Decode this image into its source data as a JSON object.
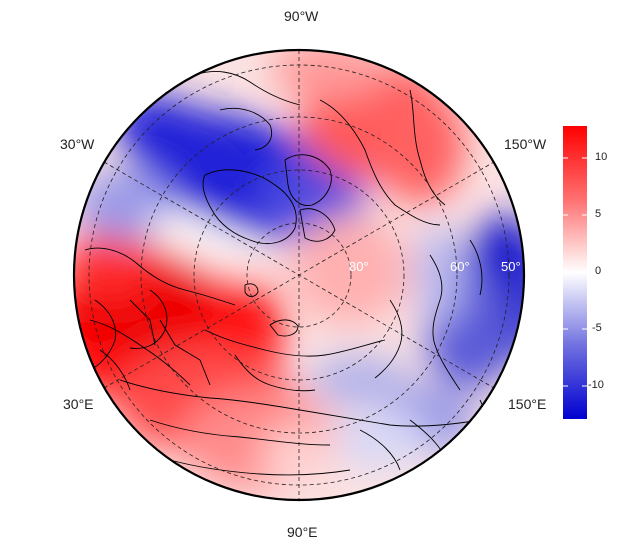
{
  "map": {
    "projection": "north-polar-stereographic",
    "meridian_labels": {
      "top": "90°W",
      "upper_left": "30°W",
      "upper_right": "150°W",
      "lower_left": "30°E",
      "lower_right": "150°E",
      "bottom": "90°E"
    },
    "latitude_labels": [
      "80°",
      "60°",
      "50°"
    ]
  },
  "colorbar": {
    "range": [
      -13,
      13
    ],
    "ticks": [
      "10",
      "5",
      "0",
      "-5",
      "-10"
    ],
    "colors": {
      "min": "#0000d0",
      "mid": "#ffffff",
      "max": "#ff0000"
    }
  },
  "colors": {
    "border": "#000000",
    "grid": "#222222",
    "coast": "#000000"
  }
}
